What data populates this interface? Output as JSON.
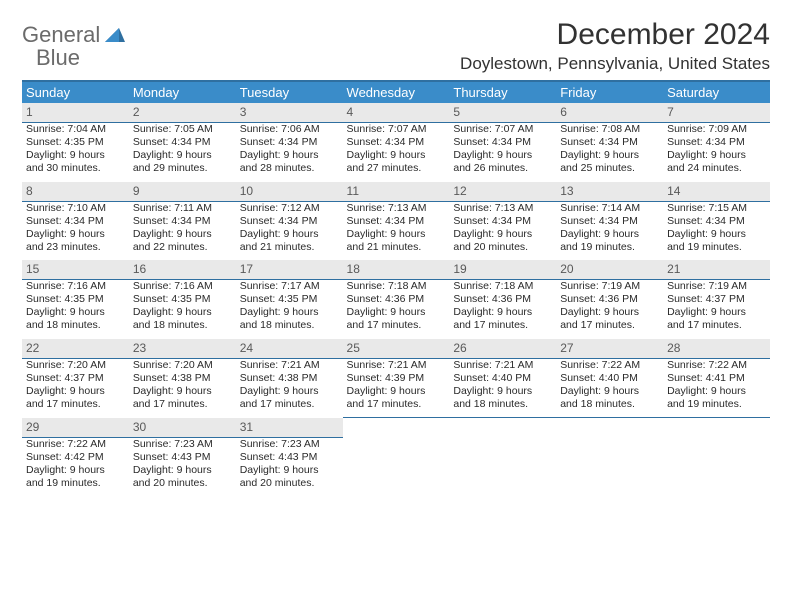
{
  "logo": {
    "word1": "General",
    "word2": "Blue"
  },
  "title": "December 2024",
  "location": "Doylestown, Pennsylvania, United States",
  "colors": {
    "header_bg": "#3a8cc9",
    "header_border": "#2f6fa0",
    "daynum_bg": "#e9e9e9",
    "text": "#2a2a2a",
    "logo_gray": "#6b6b6b",
    "logo_blue": "#3a7fbf"
  },
  "weekdays": [
    "Sunday",
    "Monday",
    "Tuesday",
    "Wednesday",
    "Thursday",
    "Friday",
    "Saturday"
  ],
  "weeks": [
    [
      {
        "n": "1",
        "sr": "Sunrise: 7:04 AM",
        "ss": "Sunset: 4:35 PM",
        "d1": "Daylight: 9 hours",
        "d2": "and 30 minutes."
      },
      {
        "n": "2",
        "sr": "Sunrise: 7:05 AM",
        "ss": "Sunset: 4:34 PM",
        "d1": "Daylight: 9 hours",
        "d2": "and 29 minutes."
      },
      {
        "n": "3",
        "sr": "Sunrise: 7:06 AM",
        "ss": "Sunset: 4:34 PM",
        "d1": "Daylight: 9 hours",
        "d2": "and 28 minutes."
      },
      {
        "n": "4",
        "sr": "Sunrise: 7:07 AM",
        "ss": "Sunset: 4:34 PM",
        "d1": "Daylight: 9 hours",
        "d2": "and 27 minutes."
      },
      {
        "n": "5",
        "sr": "Sunrise: 7:07 AM",
        "ss": "Sunset: 4:34 PM",
        "d1": "Daylight: 9 hours",
        "d2": "and 26 minutes."
      },
      {
        "n": "6",
        "sr": "Sunrise: 7:08 AM",
        "ss": "Sunset: 4:34 PM",
        "d1": "Daylight: 9 hours",
        "d2": "and 25 minutes."
      },
      {
        "n": "7",
        "sr": "Sunrise: 7:09 AM",
        "ss": "Sunset: 4:34 PM",
        "d1": "Daylight: 9 hours",
        "d2": "and 24 minutes."
      }
    ],
    [
      {
        "n": "8",
        "sr": "Sunrise: 7:10 AM",
        "ss": "Sunset: 4:34 PM",
        "d1": "Daylight: 9 hours",
        "d2": "and 23 minutes."
      },
      {
        "n": "9",
        "sr": "Sunrise: 7:11 AM",
        "ss": "Sunset: 4:34 PM",
        "d1": "Daylight: 9 hours",
        "d2": "and 22 minutes."
      },
      {
        "n": "10",
        "sr": "Sunrise: 7:12 AM",
        "ss": "Sunset: 4:34 PM",
        "d1": "Daylight: 9 hours",
        "d2": "and 21 minutes."
      },
      {
        "n": "11",
        "sr": "Sunrise: 7:13 AM",
        "ss": "Sunset: 4:34 PM",
        "d1": "Daylight: 9 hours",
        "d2": "and 21 minutes."
      },
      {
        "n": "12",
        "sr": "Sunrise: 7:13 AM",
        "ss": "Sunset: 4:34 PM",
        "d1": "Daylight: 9 hours",
        "d2": "and 20 minutes."
      },
      {
        "n": "13",
        "sr": "Sunrise: 7:14 AM",
        "ss": "Sunset: 4:34 PM",
        "d1": "Daylight: 9 hours",
        "d2": "and 19 minutes."
      },
      {
        "n": "14",
        "sr": "Sunrise: 7:15 AM",
        "ss": "Sunset: 4:34 PM",
        "d1": "Daylight: 9 hours",
        "d2": "and 19 minutes."
      }
    ],
    [
      {
        "n": "15",
        "sr": "Sunrise: 7:16 AM",
        "ss": "Sunset: 4:35 PM",
        "d1": "Daylight: 9 hours",
        "d2": "and 18 minutes."
      },
      {
        "n": "16",
        "sr": "Sunrise: 7:16 AM",
        "ss": "Sunset: 4:35 PM",
        "d1": "Daylight: 9 hours",
        "d2": "and 18 minutes."
      },
      {
        "n": "17",
        "sr": "Sunrise: 7:17 AM",
        "ss": "Sunset: 4:35 PM",
        "d1": "Daylight: 9 hours",
        "d2": "and 18 minutes."
      },
      {
        "n": "18",
        "sr": "Sunrise: 7:18 AM",
        "ss": "Sunset: 4:36 PM",
        "d1": "Daylight: 9 hours",
        "d2": "and 17 minutes."
      },
      {
        "n": "19",
        "sr": "Sunrise: 7:18 AM",
        "ss": "Sunset: 4:36 PM",
        "d1": "Daylight: 9 hours",
        "d2": "and 17 minutes."
      },
      {
        "n": "20",
        "sr": "Sunrise: 7:19 AM",
        "ss": "Sunset: 4:36 PM",
        "d1": "Daylight: 9 hours",
        "d2": "and 17 minutes."
      },
      {
        "n": "21",
        "sr": "Sunrise: 7:19 AM",
        "ss": "Sunset: 4:37 PM",
        "d1": "Daylight: 9 hours",
        "d2": "and 17 minutes."
      }
    ],
    [
      {
        "n": "22",
        "sr": "Sunrise: 7:20 AM",
        "ss": "Sunset: 4:37 PM",
        "d1": "Daylight: 9 hours",
        "d2": "and 17 minutes."
      },
      {
        "n": "23",
        "sr": "Sunrise: 7:20 AM",
        "ss": "Sunset: 4:38 PM",
        "d1": "Daylight: 9 hours",
        "d2": "and 17 minutes."
      },
      {
        "n": "24",
        "sr": "Sunrise: 7:21 AM",
        "ss": "Sunset: 4:38 PM",
        "d1": "Daylight: 9 hours",
        "d2": "and 17 minutes."
      },
      {
        "n": "25",
        "sr": "Sunrise: 7:21 AM",
        "ss": "Sunset: 4:39 PM",
        "d1": "Daylight: 9 hours",
        "d2": "and 17 minutes."
      },
      {
        "n": "26",
        "sr": "Sunrise: 7:21 AM",
        "ss": "Sunset: 4:40 PM",
        "d1": "Daylight: 9 hours",
        "d2": "and 18 minutes."
      },
      {
        "n": "27",
        "sr": "Sunrise: 7:22 AM",
        "ss": "Sunset: 4:40 PM",
        "d1": "Daylight: 9 hours",
        "d2": "and 18 minutes."
      },
      {
        "n": "28",
        "sr": "Sunrise: 7:22 AM",
        "ss": "Sunset: 4:41 PM",
        "d1": "Daylight: 9 hours",
        "d2": "and 19 minutes."
      }
    ],
    [
      {
        "n": "29",
        "sr": "Sunrise: 7:22 AM",
        "ss": "Sunset: 4:42 PM",
        "d1": "Daylight: 9 hours",
        "d2": "and 19 minutes."
      },
      {
        "n": "30",
        "sr": "Sunrise: 7:23 AM",
        "ss": "Sunset: 4:43 PM",
        "d1": "Daylight: 9 hours",
        "d2": "and 20 minutes."
      },
      {
        "n": "31",
        "sr": "Sunrise: 7:23 AM",
        "ss": "Sunset: 4:43 PM",
        "d1": "Daylight: 9 hours",
        "d2": "and 20 minutes."
      },
      null,
      null,
      null,
      null
    ]
  ]
}
